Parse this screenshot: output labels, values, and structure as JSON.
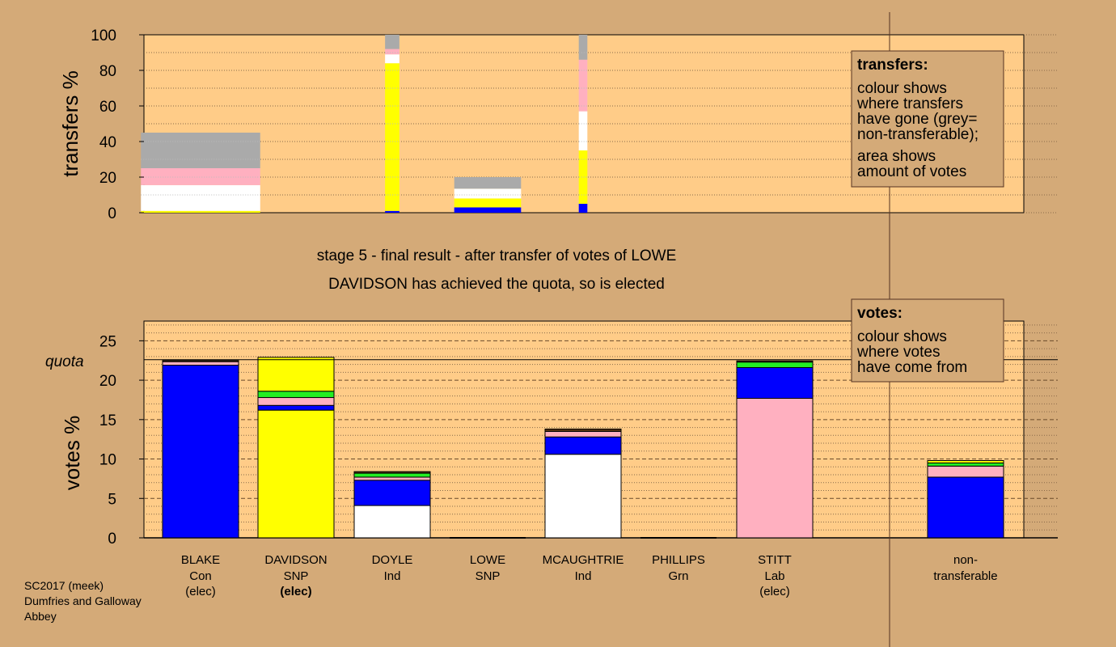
{
  "colors": {
    "background": "#d4aa78",
    "plot_bg": "#ffcc88",
    "Con": "#0000ff",
    "SNP": "#ffff00",
    "Ind": "#ffffff",
    "Lab": "#ffb0c0",
    "Grn": "#22ee22",
    "non_transferable": "#aaaaaa",
    "other": "#553311"
  },
  "captions": {
    "stage": "stage 5 - final result - after transfer of votes of LOWE",
    "elected": "DAVIDSON has achieved the quota, so is elected"
  },
  "quota_label": "quota",
  "legend_transfers": {
    "title": "transfers:",
    "lines": [
      "colour shows",
      "where transfers",
      "have gone (grey=",
      "non-transferable);",
      "area shows",
      "amount of votes"
    ]
  },
  "legend_votes": {
    "title": "votes:",
    "lines": [
      "colour shows",
      "where votes",
      "have come from"
    ]
  },
  "candidates": [
    {
      "name": "BLAKE",
      "party": "Con",
      "status": "(elec)"
    },
    {
      "name": "DAVIDSON",
      "party": "SNP",
      "status": "(elec)"
    },
    {
      "name": "DOYLE",
      "party": "Ind",
      "status": ""
    },
    {
      "name": "LOWE",
      "party": "SNP",
      "status": ""
    },
    {
      "name": "MCAUGHTRIE",
      "party": "Ind",
      "status": ""
    },
    {
      "name": "PHILLIPS",
      "party": "Grn",
      "status": ""
    },
    {
      "name": "STITT",
      "party": "Lab",
      "status": "(elec)"
    }
  ],
  "non_transferable_label": [
    "non-",
    "transferable"
  ],
  "footer": [
    "SC2017 (meek)",
    "Dumfries and Galloway",
    "Abbey"
  ],
  "chart_data": [
    {
      "type": "bar",
      "stacked": true,
      "ylabel": "transfers %",
      "ylim": [
        0,
        100
      ],
      "yticks": [
        0,
        20,
        40,
        60,
        80,
        100
      ],
      "categories": [
        "BLAKE",
        "DAVIDSON",
        "DOYLE",
        "LOWE",
        "MCAUGHTRIE",
        "PHILLIPS",
        "STITT"
      ],
      "bars": [
        {
          "category": "BLAKE",
          "width": 2.5,
          "segments": [
            {
              "party": "SNP",
              "value": 1
            },
            {
              "party": "Ind",
              "value": 14.5
            },
            {
              "party": "Lab",
              "value": 9.5
            },
            {
              "party": "non_transferable",
              "value": 20
            }
          ]
        },
        {
          "category": "DOYLE",
          "width": 0.3,
          "segments": [
            {
              "party": "Con",
              "value": 1
            },
            {
              "party": "SNP",
              "value": 83
            },
            {
              "party": "Ind",
              "value": 5
            },
            {
              "party": "Lab",
              "value": 3
            },
            {
              "party": "non_transferable",
              "value": 8
            }
          ]
        },
        {
          "category": "MCAUGHTRIE",
          "width": 0.18,
          "segments": [
            {
              "party": "Con",
              "value": 5
            },
            {
              "party": "SNP",
              "value": 30
            },
            {
              "party": "Ind",
              "value": 22
            },
            {
              "party": "Lab",
              "value": 29
            },
            {
              "party": "non_transferable",
              "value": 14
            }
          ]
        },
        {
          "category": "LOWE",
          "width": 1.4,
          "segments": [
            {
              "party": "Con",
              "value": 3
            },
            {
              "party": "SNP",
              "value": 5
            },
            {
              "party": "Ind",
              "value": 5.5
            },
            {
              "party": "non_transferable",
              "value": 6.5
            }
          ]
        }
      ]
    },
    {
      "type": "bar",
      "stacked": true,
      "ylabel": "votes %",
      "ylim": [
        0,
        27.5
      ],
      "yticks": [
        0,
        5,
        10,
        15,
        20,
        25
      ],
      "quota": 22.6,
      "categories": [
        "BLAKE",
        "DAVIDSON",
        "DOYLE",
        "LOWE",
        "MCAUGHTRIE",
        "PHILLIPS",
        "STITT",
        "non-transferable"
      ],
      "stacks": [
        {
          "category": "BLAKE",
          "segments": [
            {
              "party": "Con",
              "value": 21.9
            },
            {
              "party": "Lab",
              "value": 0.45
            },
            {
              "party": "other",
              "value": 0.15
            }
          ]
        },
        {
          "category": "DAVIDSON",
          "segments": [
            {
              "party": "SNP",
              "value": 16.2
            },
            {
              "party": "Con",
              "value": 0.6
            },
            {
              "party": "Lab",
              "value": 1.0
            },
            {
              "party": "Grn",
              "value": 0.8
            },
            {
              "party": "SNP",
              "value": 4.3
            }
          ]
        },
        {
          "category": "DOYLE",
          "segments": [
            {
              "party": "Ind",
              "value": 4.1
            },
            {
              "party": "Con",
              "value": 3.2
            },
            {
              "party": "Lab",
              "value": 0.4
            },
            {
              "party": "Grn",
              "value": 0.5
            },
            {
              "party": "other",
              "value": 0.2
            }
          ]
        },
        {
          "category": "LOWE",
          "segments": []
        },
        {
          "category": "MCAUGHTRIE",
          "segments": [
            {
              "party": "Ind",
              "value": 10.6
            },
            {
              "party": "Con",
              "value": 2.2
            },
            {
              "party": "Lab",
              "value": 0.7
            },
            {
              "party": "other",
              "value": 0.3
            }
          ]
        },
        {
          "category": "PHILLIPS",
          "segments": []
        },
        {
          "category": "STITT",
          "segments": [
            {
              "party": "Lab",
              "value": 17.7
            },
            {
              "party": "Con",
              "value": 3.9
            },
            {
              "party": "Grn",
              "value": 0.7
            },
            {
              "party": "other",
              "value": 0.15
            }
          ]
        },
        {
          "category": "non-transferable",
          "segments": [
            {
              "party": "Con",
              "value": 7.7
            },
            {
              "party": "Lab",
              "value": 1.4
            },
            {
              "party": "Grn",
              "value": 0.4
            },
            {
              "party": "SNP",
              "value": 0.3
            }
          ]
        }
      ]
    }
  ]
}
